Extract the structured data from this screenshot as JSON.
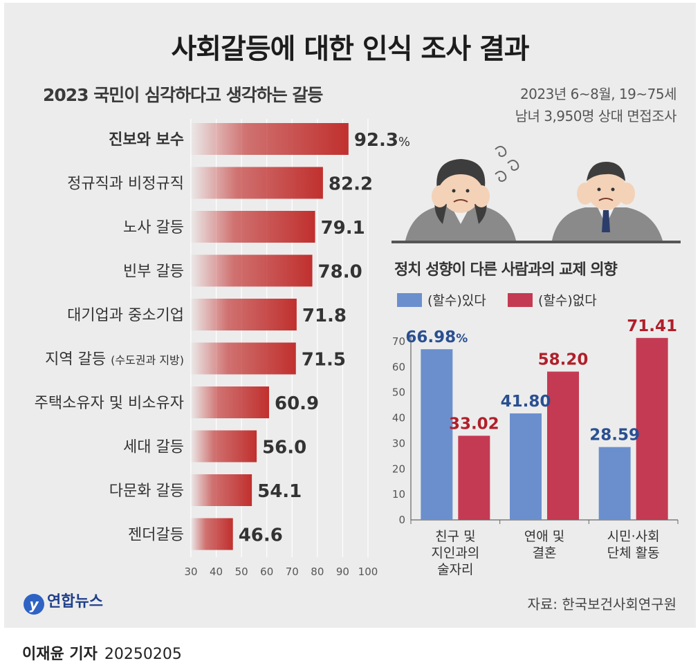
{
  "title": "사회갈등에 대한 인식 조사 결과",
  "survey_info": [
    "2023년 6~8월, 19~75세",
    "남녀 3,950명 상대 면접조사"
  ],
  "source": "자료: 한국보건사회연구원",
  "logo_text": "연합뉴스",
  "credit": {
    "name": "이재윤 기자",
    "date": "20250205"
  },
  "chart_data": [
    {
      "type": "bar",
      "orientation": "horizontal",
      "title": "2023 국민이 심각하다고 생각하는 갈등",
      "categories": [
        "진보와 보수",
        "정규직과 비정규직",
        "노사 갈등",
        "빈부 갈등",
        "대기업과 중소기업",
        "지역 갈등",
        "주택소유자 및 비소유자",
        "세대 갈등",
        "다문화 갈등",
        "젠더갈등"
      ],
      "category_notes": [
        "",
        "",
        "",
        "",
        "",
        "(수도권과 지방)",
        "",
        "",
        "",
        ""
      ],
      "values": [
        92.3,
        82.2,
        79.1,
        78.0,
        71.8,
        71.5,
        60.9,
        56.0,
        54.1,
        46.6
      ],
      "value_labels": [
        "92.3",
        "82.2",
        "79.1",
        "78.0",
        "71.8",
        "71.5",
        "60.9",
        "56.0",
        "54.1",
        "46.6"
      ],
      "unit": "%",
      "xlim": [
        30,
        100
      ],
      "x_ticks": [
        "30",
        "40",
        "50",
        "60",
        "70",
        "80",
        "90",
        "100"
      ],
      "grid": true,
      "color": "#c0302e"
    },
    {
      "type": "bar",
      "title": "정치 성향이 다른 사람과의 교제 의향",
      "categories": [
        "친구 및 지인과의 술자리",
        "연애 및 결혼",
        "시민·사회 단체 활동"
      ],
      "category_lines": [
        [
          "친구 및",
          "지인과의",
          "술자리"
        ],
        [
          "연애 및",
          "결혼"
        ],
        [
          "시민·사회",
          "단체 활동"
        ]
      ],
      "series": [
        {
          "name": "(할수)있다",
          "values": [
            66.98,
            41.8,
            28.59
          ],
          "labels": [
            "66.98",
            "41.80",
            "28.59"
          ],
          "color": "#6b8fcd",
          "label_color": "#2a4f91"
        },
        {
          "name": "(할수)없다",
          "values": [
            33.02,
            58.2,
            71.41
          ],
          "labels": [
            "33.02",
            "58.20",
            "71.41"
          ],
          "color": "#c43a52",
          "label_color": "#b01f2a"
        }
      ],
      "unit": "%",
      "ylim": [
        0,
        75
      ],
      "y_ticks": [
        "0",
        "10",
        "20",
        "30",
        "40",
        "50",
        "60",
        "70"
      ],
      "legend": "top-left"
    }
  ]
}
